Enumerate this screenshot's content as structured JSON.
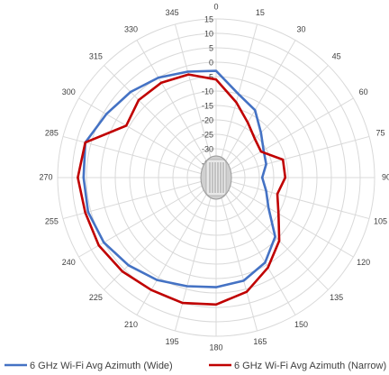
{
  "chart_data": {
    "type": "radar",
    "categories": [
      "0",
      "15",
      "30",
      "45",
      "60",
      "75",
      "90",
      "105",
      "120",
      "135",
      "150",
      "165",
      "180",
      "195",
      "210",
      "225",
      "240",
      "255",
      "270",
      "285",
      "300",
      "315",
      "330",
      "345"
    ],
    "ylim": [
      -40,
      15
    ],
    "yticks": [
      -40,
      -35,
      -30,
      -25,
      -20,
      -15,
      -10,
      -5,
      0,
      5,
      10,
      15
    ],
    "grid": true,
    "legend": "bottom",
    "series": [
      {
        "name": "6 GHz Wi-Fi Avg Azimuth (Wide)",
        "color": "#4472c4",
        "values": [
          -3,
          -10,
          -13,
          -18,
          -21,
          -22,
          -24,
          -22,
          -19,
          -11,
          -6,
          -3,
          -2,
          -1,
          1,
          3,
          5,
          6,
          6,
          7,
          4,
          2,
          0,
          -2
        ]
      },
      {
        "name": "6 GHz Wi-Fi Avg Azimuth (Narrow)",
        "color": "#c00000",
        "values": [
          -6,
          -13,
          -18,
          -21,
          -22,
          -16,
          -16,
          -18,
          -15,
          -9,
          -4,
          1,
          4,
          5,
          5,
          6,
          7,
          7,
          8,
          7,
          -4,
          -2,
          -2,
          -3
        ]
      }
    ]
  }
}
